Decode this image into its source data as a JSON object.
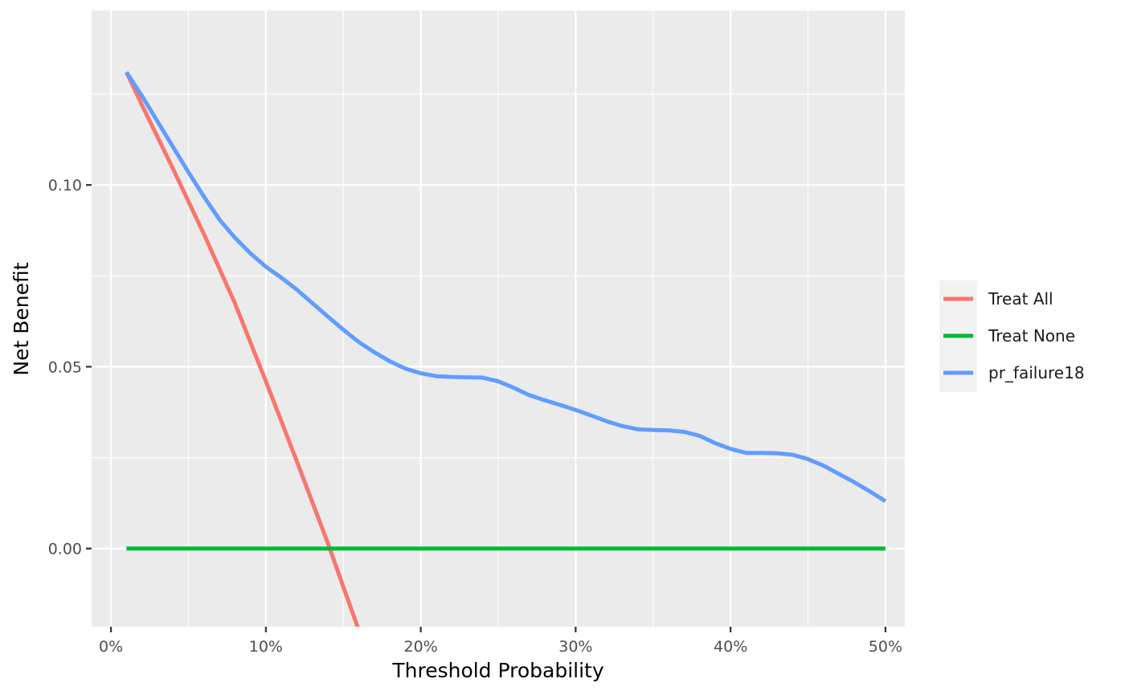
{
  "chart_data": {
    "type": "line",
    "title": "",
    "xlabel": "Threshold Probability",
    "ylabel": "Net Benefit",
    "xlim": [
      -0.0125,
      0.5125
    ],
    "ylim": [
      -0.0215,
      0.148
    ],
    "x_ticks": [
      0,
      0.1,
      0.2,
      0.3,
      0.4,
      0.5
    ],
    "x_tick_labels": [
      "0%",
      "10%",
      "20%",
      "30%",
      "40%",
      "50%"
    ],
    "y_ticks": [
      0,
      0.05,
      0.1
    ],
    "y_tick_labels": [
      "0.00",
      "0.05",
      "0.10"
    ],
    "grid": true,
    "legend_position": "right",
    "series": [
      {
        "name": "Treat All",
        "color": "#F8766D",
        "points": [
          [
            0.01,
            0.131
          ],
          [
            0.02,
            0.122
          ],
          [
            0.04,
            0.1045
          ],
          [
            0.06,
            0.0865
          ],
          [
            0.08,
            0.0675
          ],
          [
            0.1,
            0.046
          ],
          [
            0.12,
            0.024
          ],
          [
            0.14,
            0.0015
          ],
          [
            0.16,
            -0.0225
          ]
        ]
      },
      {
        "name": "Treat None",
        "color": "#00BA38",
        "points": [
          [
            0.01,
            0
          ],
          [
            0.5,
            0
          ]
        ]
      },
      {
        "name": "pr_failure18",
        "color": "#619CFF",
        "points": [
          [
            0.01,
            0.131
          ],
          [
            0.02,
            0.1245
          ],
          [
            0.03,
            0.1175
          ],
          [
            0.04,
            0.1105
          ],
          [
            0.05,
            0.1035
          ],
          [
            0.06,
            0.0968
          ],
          [
            0.07,
            0.0905
          ],
          [
            0.08,
            0.0855
          ],
          [
            0.09,
            0.0812
          ],
          [
            0.1,
            0.0775
          ],
          [
            0.11,
            0.0745
          ],
          [
            0.12,
            0.0712
          ],
          [
            0.13,
            0.0675
          ],
          [
            0.14,
            0.0638
          ],
          [
            0.15,
            0.0602
          ],
          [
            0.16,
            0.0568
          ],
          [
            0.17,
            0.054
          ],
          [
            0.18,
            0.0515
          ],
          [
            0.19,
            0.0495
          ],
          [
            0.2,
            0.0482
          ],
          [
            0.21,
            0.0474
          ],
          [
            0.22,
            0.0472
          ],
          [
            0.23,
            0.0471
          ],
          [
            0.24,
            0.047
          ],
          [
            0.25,
            0.046
          ],
          [
            0.26,
            0.0442
          ],
          [
            0.27,
            0.0422
          ],
          [
            0.28,
            0.0408
          ],
          [
            0.29,
            0.0395
          ],
          [
            0.3,
            0.0381
          ],
          [
            0.31,
            0.0366
          ],
          [
            0.32,
            0.035
          ],
          [
            0.33,
            0.0337
          ],
          [
            0.34,
            0.0328
          ],
          [
            0.35,
            0.0326
          ],
          [
            0.36,
            0.0325
          ],
          [
            0.37,
            0.0321
          ],
          [
            0.38,
            0.031
          ],
          [
            0.39,
            0.029
          ],
          [
            0.4,
            0.0274
          ],
          [
            0.41,
            0.0263
          ],
          [
            0.42,
            0.0263
          ],
          [
            0.43,
            0.0262
          ],
          [
            0.44,
            0.0258
          ],
          [
            0.45,
            0.0246
          ],
          [
            0.46,
            0.0228
          ],
          [
            0.47,
            0.0205
          ],
          [
            0.48,
            0.0182
          ],
          [
            0.49,
            0.0157
          ],
          [
            0.5,
            0.013
          ]
        ]
      }
    ]
  }
}
